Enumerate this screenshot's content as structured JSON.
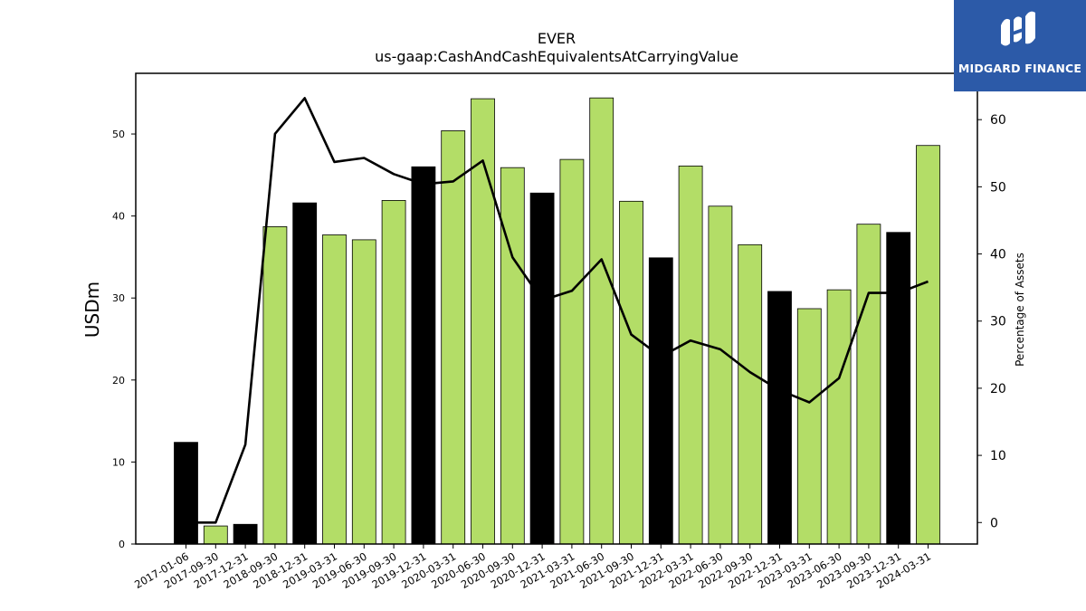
{
  "chart_data": {
    "type": "bar",
    "title": "EVER",
    "subtitle": "us-gaap:CashAndCashEquivalentsAtCarryingValue",
    "ylabel": "USDm",
    "y2label": "Percentage of Assets",
    "ylim": [
      0,
      57.4
    ],
    "y2lim": [
      -3.2,
      66.9
    ],
    "yticks": [
      0,
      10,
      20,
      30,
      40,
      50
    ],
    "y2ticks": [
      0,
      10,
      20,
      30,
      40,
      50,
      60
    ],
    "categories": [
      "2017-01-06",
      "2017-09-30",
      "2017-12-31",
      "2018-09-30",
      "2018-12-31",
      "2019-03-31",
      "2019-06-30",
      "2019-09-30",
      "2019-12-31",
      "2020-03-31",
      "2020-06-30",
      "2020-09-30",
      "2020-12-31",
      "2021-03-31",
      "2021-06-30",
      "2021-09-30",
      "2021-12-31",
      "2022-03-31",
      "2022-06-30",
      "2022-09-30",
      "2022-12-31",
      "2023-03-31",
      "2023-06-30",
      "2023-09-30",
      "2023-12-31",
      "2024-03-31"
    ],
    "series": [
      {
        "type": "bar",
        "values": [
          12.4,
          2.2,
          2.4,
          38.7,
          41.6,
          37.7,
          37.1,
          41.9,
          46.0,
          50.4,
          54.3,
          45.9,
          42.8,
          46.9,
          54.4,
          41.8,
          34.9,
          46.1,
          41.2,
          36.5,
          30.8,
          28.7,
          31.0,
          39.0,
          38.0,
          48.6
        ],
        "colors": [
          "#000000",
          "#b3dd67",
          "#000000",
          "#b3dd67",
          "#000000",
          "#b3dd67",
          "#b3dd67",
          "#b3dd67",
          "#000000",
          "#b3dd67",
          "#b3dd67",
          "#b3dd67",
          "#000000",
          "#b3dd67",
          "#b3dd67",
          "#b3dd67",
          "#000000",
          "#b3dd67",
          "#b3dd67",
          "#b3dd67",
          "#000000",
          "#b3dd67",
          "#b3dd67",
          "#b3dd67",
          "#000000",
          "#b3dd67"
        ]
      },
      {
        "type": "line",
        "axis": "right",
        "values": [
          0.0,
          0.0,
          11.6,
          57.9,
          63.2,
          53.7,
          54.3,
          51.9,
          50.4,
          50.8,
          53.9,
          39.5,
          33.1,
          34.5,
          39.2,
          28.0,
          24.7,
          27.1,
          25.8,
          22.4,
          19.7,
          17.9,
          21.5,
          34.2,
          34.2,
          35.9
        ],
        "color": "#000000"
      }
    ],
    "legend": "none",
    "grid": false
  },
  "branding": {
    "name": "MIDGARD FINANCE",
    "logo_icon": "midgard-logo-icon",
    "background": "#2c5aa8"
  }
}
